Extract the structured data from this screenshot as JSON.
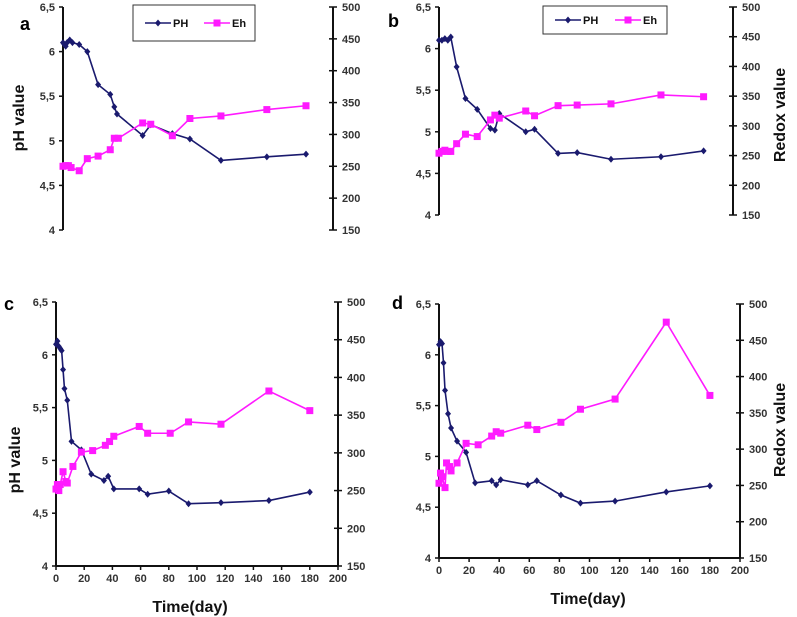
{
  "colors": {
    "ph": "#1a1a6e",
    "eh": "#ff1aff",
    "axis": "#111111"
  },
  "chart_data": [
    {
      "type": "line",
      "panel_label": "a",
      "ylabel": "pH value",
      "y2label": "",
      "xlabel": "",
      "ylim": [
        4,
        6.5
      ],
      "y2lim": [
        150,
        500
      ],
      "xlim": [
        0,
        200
      ],
      "yticks": [
        "4",
        "4,5",
        "5",
        "5,5",
        "6",
        "6,5"
      ],
      "y2ticks": [
        "150",
        "200",
        "250",
        "300",
        "350",
        "400",
        "450",
        "500"
      ],
      "xticks": [],
      "legend": {
        "position": "top-center",
        "entries": [
          "PH",
          "Eh"
        ]
      },
      "series": [
        {
          "name": "PH",
          "axis": "left",
          "x": [
            0,
            1,
            2,
            3,
            5,
            7,
            12,
            18,
            26,
            35,
            38,
            40,
            59,
            65,
            81,
            94,
            117,
            151,
            180
          ],
          "y": [
            6.1,
            6.08,
            6.06,
            6.1,
            6.13,
            6.1,
            6.08,
            6.0,
            5.63,
            5.52,
            5.38,
            5.3,
            5.06,
            5.18,
            5.08,
            5.02,
            4.78,
            4.82,
            4.85
          ]
        },
        {
          "name": "Eh",
          "axis": "right",
          "x": [
            0,
            2,
            4,
            6,
            12,
            18,
            26,
            35,
            38,
            41,
            59,
            65,
            81,
            94,
            117,
            151,
            180
          ],
          "y": [
            250,
            251,
            251,
            248,
            243,
            262,
            266,
            276,
            294,
            294,
            318,
            316,
            298,
            325,
            329,
            339,
            345
          ]
        }
      ]
    },
    {
      "type": "line",
      "panel_label": "b",
      "ylabel": "",
      "y2label": "Redox value",
      "xlabel": "",
      "ylim": [
        4,
        6.5
      ],
      "y2lim": [
        150,
        500
      ],
      "xlim": [
        0,
        200
      ],
      "yticks": [
        "4",
        "4,5",
        "5",
        "5,5",
        "6",
        "6,5"
      ],
      "y2ticks": [
        "150",
        "200",
        "250",
        "300",
        "350",
        "400",
        "450",
        "500"
      ],
      "xticks": [],
      "legend": {
        "position": "top-center",
        "entries": [
          "PH",
          "Eh"
        ]
      },
      "series": [
        {
          "name": "PH",
          "axis": "left",
          "x": [
            0,
            2,
            4,
            6,
            8,
            12,
            18,
            26,
            35,
            38,
            41,
            59,
            65,
            81,
            94,
            117,
            151,
            180
          ],
          "y": [
            6.1,
            6.1,
            6.12,
            6.1,
            6.14,
            5.78,
            5.4,
            5.27,
            5.04,
            5.02,
            5.22,
            5.0,
            5.03,
            4.74,
            4.75,
            4.67,
            4.7,
            4.77
          ]
        },
        {
          "name": "Eh",
          "axis": "right",
          "x": [
            0,
            2,
            4,
            6,
            8,
            12,
            18,
            26,
            35,
            38,
            41,
            59,
            65,
            81,
            94,
            117,
            151,
            180
          ],
          "y": [
            254,
            257,
            259,
            257,
            257,
            270,
            286,
            282,
            310,
            318,
            313,
            325,
            317,
            334,
            335,
            337,
            352,
            349
          ]
        }
      ]
    },
    {
      "type": "line",
      "panel_label": "c",
      "ylabel": "pH value",
      "y2label": "",
      "xlabel": "Time(day)",
      "ylim": [
        4,
        6.5
      ],
      "y2lim": [
        150,
        500
      ],
      "xlim": [
        0,
        200
      ],
      "yticks": [
        "4",
        "4,5",
        "5",
        "5,5",
        "6",
        "6,5"
      ],
      "y2ticks": [
        "150",
        "200",
        "250",
        "300",
        "350",
        "400",
        "450",
        "500"
      ],
      "xticks": [
        "0",
        "20",
        "40",
        "60",
        "80",
        "100",
        "120",
        "140",
        "160",
        "180",
        "200"
      ],
      "legend": null,
      "series": [
        {
          "name": "PH",
          "axis": "left",
          "x": [
            0,
            1,
            2,
            3,
            4,
            5,
            6,
            8,
            11,
            18,
            25,
            34,
            37,
            41,
            59,
            65,
            80,
            94,
            117,
            151,
            180
          ],
          "y": [
            6.1,
            6.13,
            6.08,
            6.06,
            6.04,
            5.86,
            5.68,
            5.57,
            5.18,
            5.1,
            4.87,
            4.81,
            4.85,
            4.73,
            4.73,
            4.68,
            4.71,
            4.59,
            4.6,
            4.62,
            4.7
          ]
        },
        {
          "name": "Eh",
          "axis": "right",
          "x": [
            0,
            1,
            2,
            3,
            5,
            7,
            8,
            12,
            18,
            26,
            35,
            38,
            41,
            59,
            65,
            81,
            94,
            117,
            151,
            180
          ],
          "y": [
            252,
            258,
            250,
            258,
            275,
            262,
            260,
            282,
            301,
            303,
            310,
            315,
            322,
            335,
            326,
            326,
            341,
            338,
            382,
            356
          ]
        }
      ]
    },
    {
      "type": "line",
      "panel_label": "d",
      "ylabel": "",
      "y2label": "Redox value",
      "xlabel": "Time(day)",
      "ylim": [
        4,
        6.5
      ],
      "y2lim": [
        150,
        500
      ],
      "xlim": [
        0,
        200
      ],
      "yticks": [
        "4",
        "4,5",
        "5",
        "5,5",
        "6",
        "6,5"
      ],
      "y2ticks": [
        "150",
        "200",
        "250",
        "300",
        "350",
        "400",
        "450",
        "500"
      ],
      "xticks": [
        "0",
        "20",
        "40",
        "60",
        "80",
        "100",
        "120",
        "140",
        "160",
        "180",
        "200"
      ],
      "legend": null,
      "series": [
        {
          "name": "PH",
          "axis": "left",
          "x": [
            0,
            1,
            2,
            3,
            4,
            6,
            8,
            12,
            18,
            24,
            35,
            38,
            41,
            59,
            65,
            81,
            94,
            117,
            151,
            180
          ],
          "y": [
            6.1,
            6.13,
            6.11,
            5.92,
            5.65,
            5.42,
            5.28,
            5.15,
            5.04,
            4.74,
            4.76,
            4.72,
            4.77,
            4.72,
            4.76,
            4.62,
            4.54,
            4.56,
            4.65,
            4.71
          ]
        },
        {
          "name": "Eh",
          "axis": "right",
          "x": [
            0,
            1,
            2,
            4,
            5,
            7,
            8,
            12,
            18,
            26,
            35,
            38,
            41,
            59,
            65,
            81,
            94,
            117,
            151,
            180
          ],
          "y": [
            253,
            267,
            262,
            247,
            281,
            276,
            270,
            281,
            308,
            306,
            318,
            324,
            322,
            333,
            327,
            337,
            355,
            369,
            475,
            374
          ]
        }
      ]
    }
  ]
}
